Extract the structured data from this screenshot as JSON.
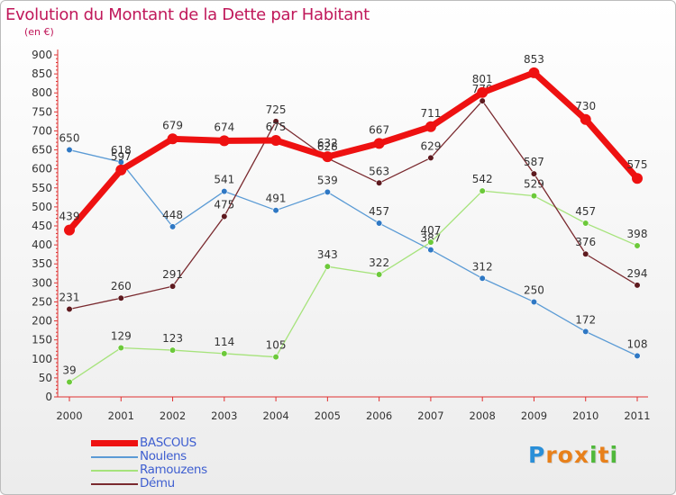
{
  "header": {
    "title": "Evolution du Montant de la Dette par Habitant",
    "subtitle": "(en €)"
  },
  "colors": {
    "title": "#c0185a",
    "axis": "#e03030",
    "tick_text": "#333333",
    "legend_text": "#3f5fd0"
  },
  "logo": {
    "letters": [
      {
        "ch": "P",
        "color": "#2a8fd8"
      },
      {
        "ch": "r",
        "color": "#e8801a"
      },
      {
        "ch": "o",
        "color": "#e8801a"
      },
      {
        "ch": "x",
        "color": "#e8801a"
      },
      {
        "ch": "i",
        "color": "#4fb83a"
      },
      {
        "ch": "t",
        "color": "#e8801a"
      },
      {
        "ch": "i",
        "color": "#4fb83a"
      }
    ]
  },
  "chart_data": {
    "type": "line",
    "title": "Evolution du Montant de la Dette par Habitant",
    "subtitle": "(en €)",
    "xlabel": "",
    "ylabel": "",
    "categories": [
      "2000",
      "2001",
      "2002",
      "2003",
      "2004",
      "2005",
      "2006",
      "2007",
      "2008",
      "2009",
      "2010",
      "2011"
    ],
    "ylim": [
      0,
      900
    ],
    "yticks": [
      0,
      50,
      100,
      150,
      200,
      250,
      300,
      350,
      400,
      450,
      500,
      550,
      600,
      650,
      700,
      750,
      800,
      850,
      900
    ],
    "grid": false,
    "legend_position": "bottom-left",
    "series": [
      {
        "name": "Noulens",
        "color": "#5b9bd5",
        "dot": "#2f78c4",
        "values": [
          650,
          618,
          448,
          541,
          491,
          539,
          457,
          387,
          312,
          250,
          172,
          108
        ]
      },
      {
        "name": "Ramouzens",
        "color": "#a6e37b",
        "dot": "#6cc93a",
        "values": [
          39,
          129,
          123,
          114,
          105,
          343,
          322,
          407,
          542,
          529,
          457,
          398
        ]
      },
      {
        "name": "Dému",
        "color": "#7a2a2f",
        "dot": "#5e1a1f",
        "values": [
          231,
          260,
          291,
          475,
          725,
          628,
          563,
          629,
          779,
          587,
          376,
          294
        ]
      },
      {
        "name": "BASCOUS",
        "color": "#ee1111",
        "dot": "#ee1111",
        "values": [
          439,
          597,
          679,
          674,
          675,
          632,
          667,
          711,
          801,
          853,
          730,
          575
        ]
      }
    ],
    "legend": [
      "BASCOUS",
      "Noulens",
      "Ramouzens",
      "Dému"
    ]
  }
}
